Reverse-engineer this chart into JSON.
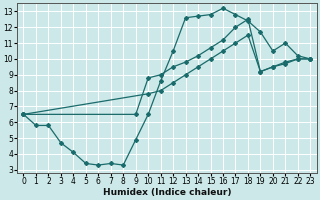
{
  "xlabel": "Humidex (Indice chaleur)",
  "background_color": "#cce8e8",
  "grid_color_main": "#ffffff",
  "grid_color_minor": "#f0c0c0",
  "line_color": "#1a6b6b",
  "xlim": [
    -0.5,
    23.5
  ],
  "ylim": [
    2.8,
    13.5
  ],
  "yticks": [
    3,
    4,
    5,
    6,
    7,
    8,
    9,
    10,
    11,
    12,
    13
  ],
  "xticks": [
    0,
    1,
    2,
    3,
    4,
    5,
    6,
    7,
    8,
    9,
    10,
    11,
    12,
    13,
    14,
    15,
    16,
    17,
    18,
    19,
    20,
    21,
    22,
    23
  ],
  "line1_x": [
    0,
    1,
    2,
    3,
    4,
    5,
    6,
    7,
    8,
    9,
    10,
    11,
    12,
    13,
    14,
    15,
    16,
    17,
    18,
    19,
    20,
    21,
    22,
    23
  ],
  "line1_y": [
    6.5,
    5.8,
    5.8,
    4.7,
    4.1,
    3.4,
    3.3,
    3.4,
    3.3,
    4.9,
    6.5,
    8.6,
    10.5,
    12.6,
    12.7,
    12.8,
    13.2,
    12.8,
    12.4,
    11.7,
    10.5,
    11.0,
    10.2,
    10.0
  ],
  "line2_x": [
    0,
    10,
    11,
    12,
    13,
    14,
    15,
    16,
    17,
    18,
    19,
    20,
    21,
    22,
    23
  ],
  "line2_y": [
    6.5,
    7.8,
    8.0,
    8.5,
    9.0,
    9.5,
    10.0,
    10.5,
    11.0,
    11.5,
    9.2,
    9.5,
    9.7,
    10.0,
    10.0
  ],
  "line3_x": [
    0,
    9,
    10,
    11,
    12,
    13,
    14,
    15,
    16,
    17,
    18,
    19,
    20,
    21,
    22,
    23
  ],
  "line3_y": [
    6.5,
    6.5,
    8.8,
    9.0,
    9.5,
    9.8,
    10.2,
    10.7,
    11.2,
    12.0,
    12.5,
    9.2,
    9.5,
    9.8,
    10.0,
    10.0
  ]
}
